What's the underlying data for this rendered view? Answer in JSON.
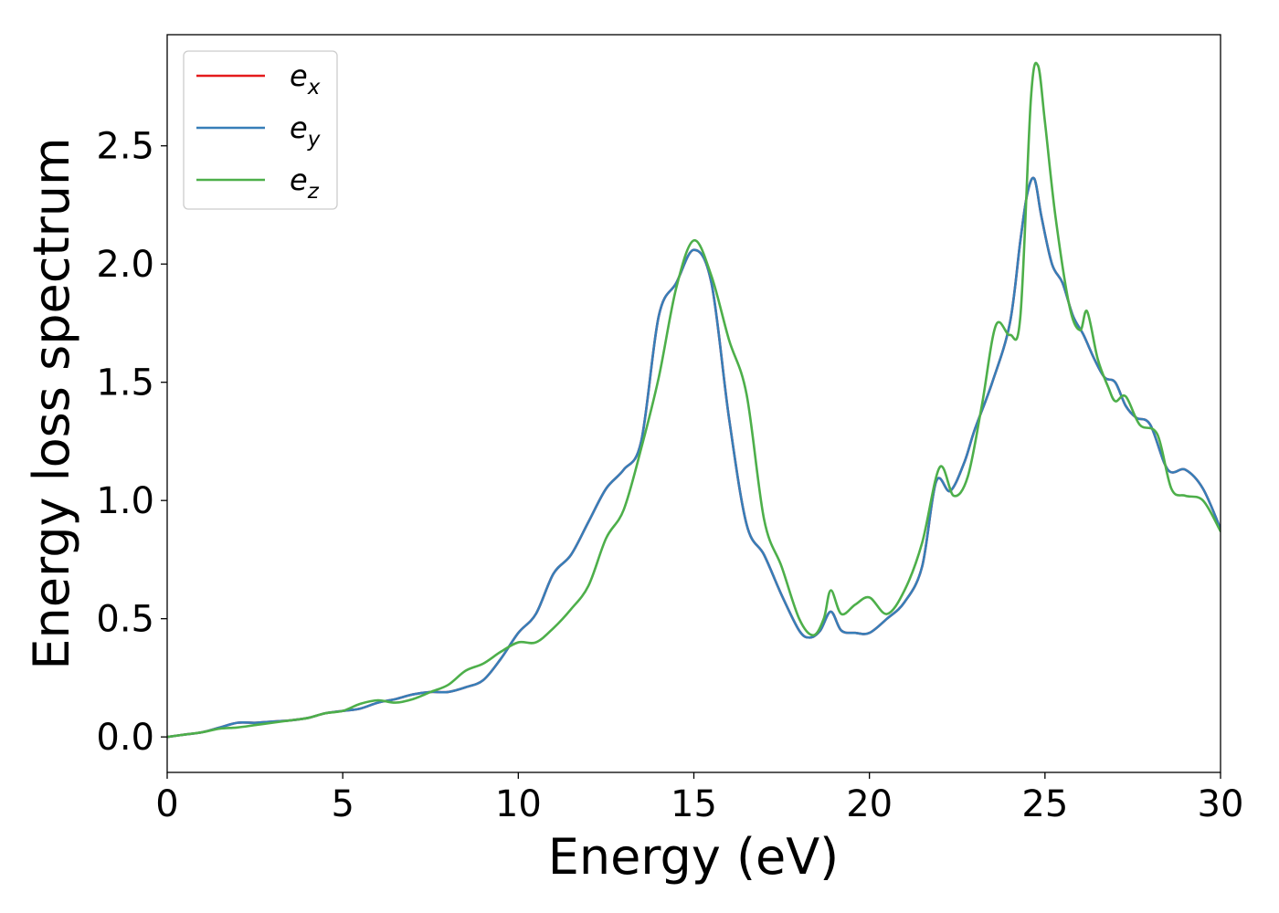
{
  "chart_data": {
    "type": "line",
    "xlabel": "Energy (eV)",
    "ylabel": "Energy loss spectrum",
    "xlim": [
      0,
      30
    ],
    "ylim": [
      -0.15,
      2.97
    ],
    "xticks": [
      "0",
      "5",
      "10",
      "15",
      "20",
      "25",
      "30"
    ],
    "yticks": [
      "0.0",
      "0.5",
      "1.0",
      "1.5",
      "2.0",
      "2.5"
    ],
    "grid": false,
    "legend_position": "top-left",
    "series": [
      {
        "name": "e_x",
        "base": "e",
        "sub": "x",
        "color": "#e41a1c",
        "x": [
          0,
          0.5,
          1,
          1.5,
          2,
          2.5,
          3,
          3.5,
          4,
          4.5,
          5,
          5.5,
          6,
          6.5,
          7,
          7.5,
          8,
          8.5,
          9,
          9.5,
          10,
          10.5,
          11,
          11.5,
          12,
          12.5,
          13,
          13.5,
          14,
          14.5,
          15,
          15.5,
          16,
          16.5,
          17,
          17.5,
          18,
          18.3,
          18.6,
          18.9,
          19.2,
          19.6,
          20,
          20.5,
          21,
          21.5,
          21.9,
          22.3,
          22.7,
          23,
          23.5,
          24,
          24.3,
          24.5,
          24.7,
          24.9,
          25.2,
          25.5,
          25.8,
          26.1,
          26.4,
          26.7,
          27,
          27.3,
          27.6,
          28,
          28.5,
          29,
          29.5,
          30
        ],
        "y": [
          0.0,
          0.01,
          0.02,
          0.04,
          0.06,
          0.06,
          0.065,
          0.07,
          0.08,
          0.1,
          0.11,
          0.12,
          0.145,
          0.16,
          0.18,
          0.19,
          0.19,
          0.21,
          0.24,
          0.33,
          0.44,
          0.52,
          0.69,
          0.77,
          0.91,
          1.05,
          1.13,
          1.25,
          1.78,
          1.92,
          2.06,
          1.92,
          1.35,
          0.9,
          0.77,
          0.6,
          0.45,
          0.42,
          0.45,
          0.53,
          0.45,
          0.44,
          0.44,
          0.5,
          0.57,
          0.72,
          1.08,
          1.04,
          1.16,
          1.3,
          1.5,
          1.75,
          2.1,
          2.3,
          2.36,
          2.2,
          2.0,
          1.92,
          1.78,
          1.7,
          1.6,
          1.52,
          1.5,
          1.4,
          1.35,
          1.32,
          1.13,
          1.13,
          1.05,
          0.88
        ]
      },
      {
        "name": "e_y",
        "base": "e",
        "sub": "y",
        "color": "#377eb8",
        "x": [
          0,
          0.5,
          1,
          1.5,
          2,
          2.5,
          3,
          3.5,
          4,
          4.5,
          5,
          5.5,
          6,
          6.5,
          7,
          7.5,
          8,
          8.5,
          9,
          9.5,
          10,
          10.5,
          11,
          11.5,
          12,
          12.5,
          13,
          13.5,
          14,
          14.5,
          15,
          15.5,
          16,
          16.5,
          17,
          17.5,
          18,
          18.3,
          18.6,
          18.9,
          19.2,
          19.6,
          20,
          20.5,
          21,
          21.5,
          21.9,
          22.3,
          22.7,
          23,
          23.5,
          24,
          24.3,
          24.5,
          24.7,
          24.9,
          25.2,
          25.5,
          25.8,
          26.1,
          26.4,
          26.7,
          27,
          27.3,
          27.6,
          28,
          28.5,
          29,
          29.5,
          30
        ],
        "y": [
          0.0,
          0.01,
          0.02,
          0.04,
          0.06,
          0.06,
          0.065,
          0.07,
          0.08,
          0.1,
          0.11,
          0.12,
          0.145,
          0.16,
          0.18,
          0.19,
          0.19,
          0.21,
          0.24,
          0.33,
          0.44,
          0.52,
          0.69,
          0.77,
          0.91,
          1.05,
          1.13,
          1.25,
          1.78,
          1.92,
          2.06,
          1.92,
          1.35,
          0.9,
          0.77,
          0.6,
          0.45,
          0.42,
          0.45,
          0.53,
          0.45,
          0.44,
          0.44,
          0.5,
          0.57,
          0.72,
          1.08,
          1.04,
          1.16,
          1.3,
          1.5,
          1.75,
          2.1,
          2.3,
          2.36,
          2.2,
          2.0,
          1.92,
          1.78,
          1.7,
          1.6,
          1.52,
          1.5,
          1.4,
          1.35,
          1.32,
          1.13,
          1.13,
          1.05,
          0.88
        ]
      },
      {
        "name": "e_z",
        "base": "e",
        "sub": "z",
        "color": "#4daf4a",
        "x": [
          0,
          0.5,
          1,
          1.5,
          2,
          2.5,
          3,
          3.5,
          4,
          4.5,
          5,
          5.5,
          6,
          6.5,
          7,
          7.5,
          8,
          8.5,
          9,
          9.5,
          10,
          10.5,
          11,
          11.5,
          12,
          12.5,
          13,
          13.5,
          14,
          14.5,
          15,
          15.5,
          16,
          16.5,
          17,
          17.5,
          18,
          18.4,
          18.7,
          18.9,
          19.2,
          19.6,
          20,
          20.5,
          21,
          21.5,
          22,
          22.4,
          22.8,
          23.2,
          23.6,
          24,
          24.3,
          24.6,
          24.8,
          25,
          25.3,
          25.7,
          26,
          26.2,
          26.5,
          26.8,
          27,
          27.3,
          27.7,
          28.2,
          28.6,
          29,
          29.5,
          30
        ],
        "y": [
          0.0,
          0.01,
          0.02,
          0.035,
          0.04,
          0.05,
          0.06,
          0.07,
          0.08,
          0.1,
          0.11,
          0.14,
          0.155,
          0.145,
          0.16,
          0.19,
          0.22,
          0.28,
          0.31,
          0.36,
          0.4,
          0.4,
          0.46,
          0.54,
          0.64,
          0.84,
          0.96,
          1.22,
          1.52,
          1.9,
          2.1,
          1.95,
          1.68,
          1.45,
          0.92,
          0.72,
          0.5,
          0.43,
          0.5,
          0.62,
          0.52,
          0.56,
          0.59,
          0.52,
          0.62,
          0.82,
          1.14,
          1.02,
          1.1,
          1.4,
          1.74,
          1.7,
          1.78,
          2.7,
          2.84,
          2.6,
          2.2,
          1.82,
          1.72,
          1.8,
          1.6,
          1.48,
          1.42,
          1.44,
          1.32,
          1.28,
          1.05,
          1.02,
          1.0,
          0.87
        ]
      }
    ]
  }
}
